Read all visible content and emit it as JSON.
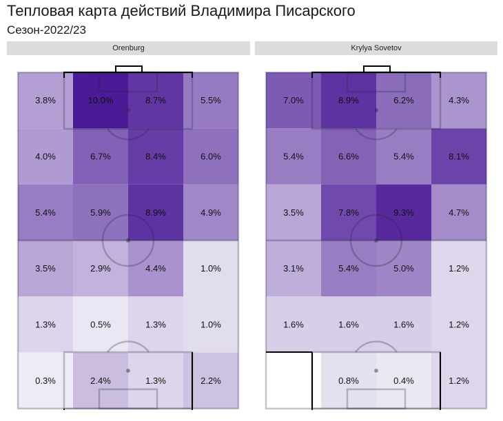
{
  "title": "Тепловая карта действий Владимира Писарского",
  "subtitle": "Сезон-2022/23",
  "colors": {
    "max": "#4b1a96",
    "min": "#f2f1f8",
    "header_bg": "#dcdcdc",
    "lines": "#000000"
  },
  "chart_data": [
    {
      "type": "heatmap",
      "team": "Orenburg",
      "rows": 6,
      "cols": 4,
      "cells": [
        {
          "row": 0,
          "col": 0,
          "label": "3.8%",
          "value": 3.8
        },
        {
          "row": 0,
          "col": 1,
          "label": "10.0%",
          "value": 10.0
        },
        {
          "row": 0,
          "col": 2,
          "label": "8.7%",
          "value": 8.7
        },
        {
          "row": 0,
          "col": 3,
          "label": "5.5%",
          "value": 5.5
        },
        {
          "row": 1,
          "col": 0,
          "label": "4.0%",
          "value": 4.0
        },
        {
          "row": 1,
          "col": 1,
          "label": "6.7%",
          "value": 6.7
        },
        {
          "row": 1,
          "col": 2,
          "label": "8.4%",
          "value": 8.4
        },
        {
          "row": 1,
          "col": 3,
          "label": "6.0%",
          "value": 6.0
        },
        {
          "row": 2,
          "col": 0,
          "label": "5.4%",
          "value": 5.4
        },
        {
          "row": 2,
          "col": 1,
          "label": "5.9%",
          "value": 5.9
        },
        {
          "row": 2,
          "col": 2,
          "label": "8.9%",
          "value": 8.9
        },
        {
          "row": 2,
          "col": 3,
          "label": "4.9%",
          "value": 4.9
        },
        {
          "row": 3,
          "col": 0,
          "label": "3.5%",
          "value": 3.5
        },
        {
          "row": 3,
          "col": 1,
          "label": "2.9%",
          "value": 2.9
        },
        {
          "row": 3,
          "col": 2,
          "label": "4.4%",
          "value": 4.4
        },
        {
          "row": 3,
          "col": 3,
          "label": "1.0%",
          "value": 1.0
        },
        {
          "row": 4,
          "col": 0,
          "label": "1.3%",
          "value": 1.3
        },
        {
          "row": 4,
          "col": 1,
          "label": "0.5%",
          "value": 0.5
        },
        {
          "row": 4,
          "col": 2,
          "label": "1.3%",
          "value": 1.3
        },
        {
          "row": 4,
          "col": 3,
          "label": "1.0%",
          "value": 1.0
        },
        {
          "row": 5,
          "col": 0,
          "label": "0.3%",
          "value": 0.3
        },
        {
          "row": 5,
          "col": 1,
          "label": "2.4%",
          "value": 2.4
        },
        {
          "row": 5,
          "col": 2,
          "label": "1.3%",
          "value": 1.3
        },
        {
          "row": 5,
          "col": 3,
          "label": "2.2%",
          "value": 2.2
        }
      ]
    },
    {
      "type": "heatmap",
      "team": "Krylya Sovetov",
      "rows": 6,
      "cols": 4,
      "cells": [
        {
          "row": 0,
          "col": 0,
          "label": "7.0%",
          "value": 7.0
        },
        {
          "row": 0,
          "col": 1,
          "label": "8.9%",
          "value": 8.9
        },
        {
          "row": 0,
          "col": 2,
          "label": "6.2%",
          "value": 6.2
        },
        {
          "row": 0,
          "col": 3,
          "label": "4.3%",
          "value": 4.3
        },
        {
          "row": 1,
          "col": 0,
          "label": "5.4%",
          "value": 5.4
        },
        {
          "row": 1,
          "col": 1,
          "label": "6.6%",
          "value": 6.6
        },
        {
          "row": 1,
          "col": 2,
          "label": "5.4%",
          "value": 5.4
        },
        {
          "row": 1,
          "col": 3,
          "label": "8.1%",
          "value": 8.1
        },
        {
          "row": 2,
          "col": 0,
          "label": "3.5%",
          "value": 3.5
        },
        {
          "row": 2,
          "col": 1,
          "label": "7.8%",
          "value": 7.8
        },
        {
          "row": 2,
          "col": 2,
          "label": "9.3%",
          "value": 9.3
        },
        {
          "row": 2,
          "col": 3,
          "label": "4.7%",
          "value": 4.7
        },
        {
          "row": 3,
          "col": 0,
          "label": "3.1%",
          "value": 3.1
        },
        {
          "row": 3,
          "col": 1,
          "label": "5.4%",
          "value": 5.4
        },
        {
          "row": 3,
          "col": 2,
          "label": "5.0%",
          "value": 5.0
        },
        {
          "row": 3,
          "col": 3,
          "label": "1.2%",
          "value": 1.2
        },
        {
          "row": 4,
          "col": 0,
          "label": "1.6%",
          "value": 1.6
        },
        {
          "row": 4,
          "col": 1,
          "label": "1.6%",
          "value": 1.6
        },
        {
          "row": 4,
          "col": 2,
          "label": "1.6%",
          "value": 1.6
        },
        {
          "row": 4,
          "col": 3,
          "label": "1.2%",
          "value": 1.2
        },
        {
          "row": 5,
          "col": 0,
          "label": "",
          "value": 0
        },
        {
          "row": 5,
          "col": 1,
          "label": "0.8%",
          "value": 0.8
        },
        {
          "row": 5,
          "col": 2,
          "label": "0.4%",
          "value": 0.4
        },
        {
          "row": 5,
          "col": 3,
          "label": "1.2%",
          "value": 1.2
        }
      ]
    }
  ]
}
